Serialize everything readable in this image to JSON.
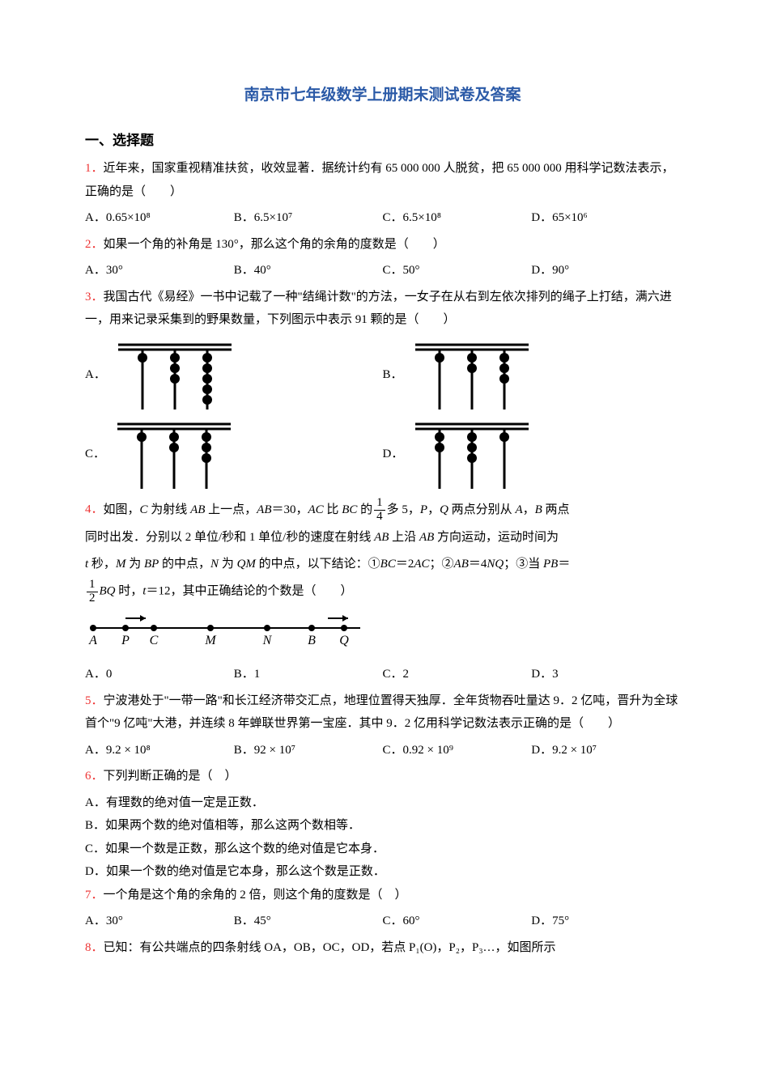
{
  "title": "南京市七年级数学上册期末测试卷及答案",
  "section1": "一、选择题",
  "q1": {
    "num": "1．",
    "text": "近年来，国家重视精准扶贫，收效显著．据统计约有 65 000 000 人脱贫，把 65 000 000 用科学记数法表示，正确的是（　　）",
    "a": "A．0.65×10⁸",
    "b": "B．6.5×10⁷",
    "c": "C．6.5×10⁸",
    "d": "D．65×10⁶"
  },
  "q2": {
    "num": "2．",
    "text": "如果一个角的补角是 130°，那么这个角的余角的度数是（　　）",
    "a": "A．30°",
    "b": "B．40°",
    "c": "C．50°",
    "d": "D．90°"
  },
  "q3": {
    "num": "3．",
    "text": "我国古代《易经》一书中记载了一种\"结绳计数\"的方法，一女子在从右到左依次排列的绳子上打结，满六进一，用来记录采集到的野果数量，下列图示中表示 91 颗的是（　　）",
    "a": "A．",
    "b": "B．",
    "c": "C．",
    "d": "D．"
  },
  "q3_abacus": {
    "A": [
      1,
      3,
      5
    ],
    "B": [
      1,
      2,
      3
    ],
    "C": [
      1,
      2,
      3
    ],
    "D": [
      2,
      3,
      1
    ]
  },
  "q4": {
    "num": "4．",
    "p1a": "如图，",
    "p1b": " 为射线 ",
    "p1c": " 上一点，",
    "p1d": "＝30，",
    "p1e": " 比 ",
    "p1f": " 的",
    "p1g": "多 5，",
    "p1h": "，",
    "p1i": " 两点分别从 ",
    "p1j": "，",
    "p1k": " 两点",
    "p2a": "同时出发．分别以 2 单位/秒和 1 单位/秒的速度在射线 ",
    "p2b": " 上沿 ",
    "p2c": " 方向运动，运动时间为",
    "p3a": " 秒，",
    "p3b": " 为 ",
    "p3c": " 的中点，",
    "p3d": " 为 ",
    "p3e": " 的中点，以下结论：①",
    "p3f": "＝2",
    "p3g": "；②",
    "p3h": "＝4",
    "p3i": "；③当 ",
    "p3j": "＝",
    "p4a": " 时，",
    "p4b": "＝12，其中正确结论的个数是（　　）",
    "a": "A．0",
    "b": "B．1",
    "c": "C．2",
    "d": "D．3",
    "labels": [
      "A",
      "P",
      "C",
      "M",
      "N",
      "B",
      "Q"
    ]
  },
  "q5": {
    "num": "5．",
    "text": "宁波港处于\"一带一路\"和长江经济带交汇点，地理位置得天独厚．全年货物吞吐量达 9．2 亿吨，晋升为全球首个\"9 亿吨\"大港，并连续 8 年蝉联世界第一宝座．其中 9．2 亿用科学记数法表示正确的是（　　）",
    "a": "A．9.2 × 10⁸",
    "b": "B．92 × 10⁷",
    "c": "C．0.92 × 10⁹",
    "d": "D．9.2 × 10⁷"
  },
  "q6": {
    "num": "6．",
    "text": "下列判断正确的是（　）",
    "a": "A．有理数的绝对值一定是正数．",
    "b": "B．如果两个数的绝对值相等，那么这两个数相等．",
    "c": "C．如果一个数是正数，那么这个数的绝对值是它本身．",
    "d": "D．如果一个数的绝对值是它本身，那么这个数是正数．"
  },
  "q7": {
    "num": "7．",
    "text": "一个角是这个角的余角的 2 倍，则这个角的度数是（　）",
    "a": "A．30°",
    "b": "B．45°",
    "c": "C．60°",
    "d": "D．75°"
  },
  "q8": {
    "num": "8．",
    "text": "已知：有公共端点的四条射线 OA，OB，OC，OD，若点 P₁(O)，P₂，P₃…，如图所示"
  },
  "colors": {
    "qnum": "#ee3333",
    "title": "#2b5aa7",
    "text": "#000000",
    "bg": "#ffffff"
  }
}
